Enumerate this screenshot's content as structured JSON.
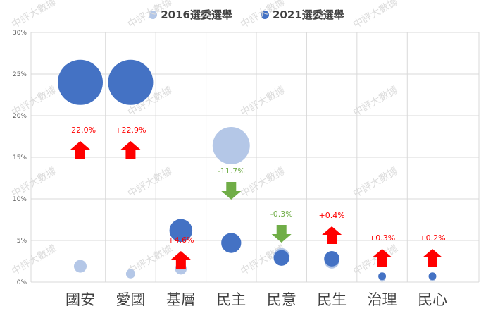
{
  "chart_data": {
    "type": "bubble",
    "title": "",
    "xlabel": "",
    "ylabel": "",
    "ylim": [
      0,
      30
    ],
    "yticks": [
      "0%",
      "5%",
      "10%",
      "15%",
      "20%",
      "25%",
      "30%"
    ],
    "grid": true,
    "legend_position": "top",
    "categories": [
      "國安",
      "愛國",
      "基層",
      "民主",
      "民意",
      "民生",
      "治理",
      "民心"
    ],
    "series": [
      {
        "name": "2016選委選舉",
        "color": "#b4c7e7",
        "values": [
          1.9,
          1.0,
          1.6,
          16.4,
          3.1,
          2.5,
          0.4,
          0.5
        ]
      },
      {
        "name": "2021選委選舉",
        "color": "#4472c4",
        "values": [
          24.0,
          24.0,
          6.2,
          4.7,
          2.9,
          2.8,
          0.7,
          0.7
        ]
      }
    ],
    "annotations": [
      {
        "category": "國安",
        "label": "+22.0%",
        "direction": "up",
        "color": "#ff0000"
      },
      {
        "category": "愛國",
        "label": "+22.9%",
        "direction": "up",
        "color": "#ff0000"
      },
      {
        "category": "基層",
        "label": "+4.6%",
        "direction": "up",
        "color": "#ff0000"
      },
      {
        "category": "民主",
        "label": "-11.7%",
        "direction": "down",
        "color": "#70ad47"
      },
      {
        "category": "民意",
        "label": "-0.3%",
        "direction": "down",
        "color": "#70ad47"
      },
      {
        "category": "民生",
        "label": "+0.4%",
        "direction": "up",
        "color": "#ff0000"
      },
      {
        "category": "治理",
        "label": "+0.3%",
        "direction": "up",
        "color": "#ff0000"
      },
      {
        "category": "民心",
        "label": "+0.2%",
        "direction": "up",
        "color": "#ff0000"
      }
    ],
    "watermark": "中評大數據"
  }
}
